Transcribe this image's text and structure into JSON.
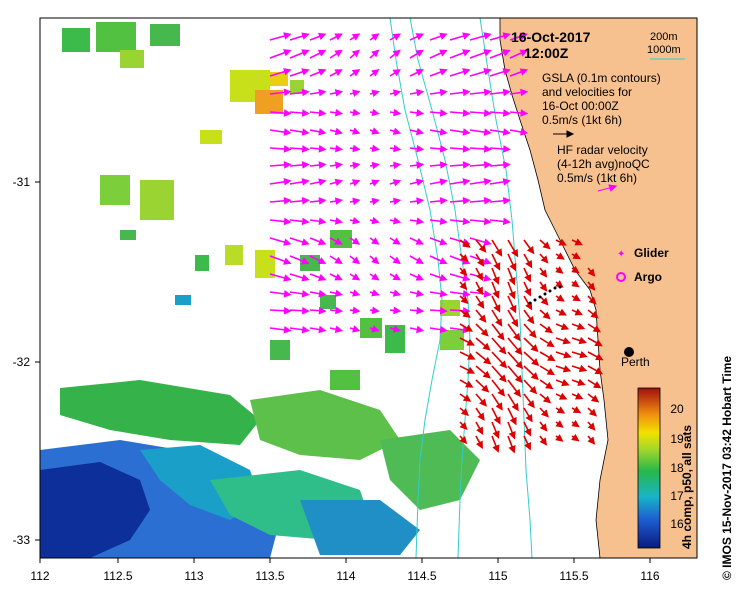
{
  "header": {
    "date": "16-Oct-2017",
    "time": "12:00Z"
  },
  "bathymetry_legend": {
    "line1": "200m",
    "line2": "1000m"
  },
  "gsla_note": {
    "line1": "GSLA (0.1m contours)",
    "line2": "and velocities for",
    "line3": "16-Oct 00:00Z",
    "line4": "0.5m/s (1kt 6h)"
  },
  "hf_note": {
    "line1": "HF radar velocity",
    "line2": "(4-12h avg)noQC",
    "line3": "0.5m/s (1kt 6h)"
  },
  "markers": {
    "glider": "Glider",
    "argo": "Argo",
    "city": "Perth"
  },
  "axes": {
    "x_ticks": [
      "112",
      "112.5",
      "113",
      "113.5",
      "114",
      "114.5",
      "115",
      "115.5",
      "116"
    ],
    "y_ticks": [
      "-31",
      "-32",
      "-33"
    ]
  },
  "colorbar": {
    "ticks": [
      "20",
      "19",
      "18",
      "17",
      "16"
    ],
    "label": "4h comp, p50, all sats"
  },
  "credit": "© IMOS 15-Nov-2017 03:42 Hobart Time",
  "colors": {
    "land": "#f7c08f",
    "shelf_contour": "#33cccc",
    "gsla_vector": "#ff00ff",
    "hf_vector": "#dd0000",
    "sst_cold": "#0a2a8a",
    "sst_warm": "#f2e200"
  }
}
